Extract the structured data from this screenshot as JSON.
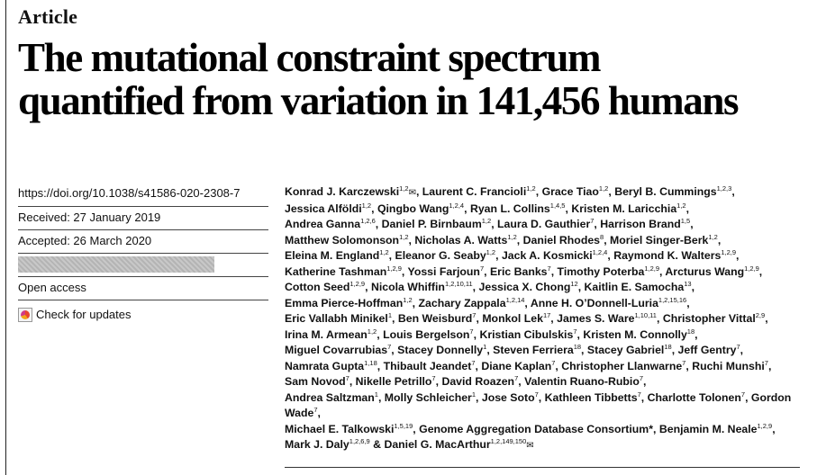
{
  "header": {
    "section": "Article",
    "title_line1": "The mutational constraint spectrum",
    "title_line2": "quantified from variation in 141,456 humans"
  },
  "meta": {
    "doi": "https://doi.org/10.1038/s41586-020-2308-7",
    "received": "Received: 27 January 2019",
    "accepted": "Accepted: 26 March 2020",
    "open_access": "Open access",
    "check_updates": "Check for updates",
    "check_updates_icon": "crossmark-icon"
  },
  "authors": [
    {
      "name": "Konrad J. Karczewski",
      "sup": "1,2",
      "mail": true
    },
    {
      "name": "Laurent C. Francioli",
      "sup": "1,2"
    },
    {
      "name": "Grace Tiao",
      "sup": "1,2"
    },
    {
      "name": "Beryl B. Cummings",
      "sup": "1,2,3"
    },
    {
      "name": "Jessica Alföldi",
      "sup": "1,2"
    },
    {
      "name": "Qingbo Wang",
      "sup": "1,2,4"
    },
    {
      "name": "Ryan L. Collins",
      "sup": "1,4,5"
    },
    {
      "name": "Kristen M. Laricchia",
      "sup": "1,2"
    },
    {
      "name": "Andrea Ganna",
      "sup": "1,2,6"
    },
    {
      "name": "Daniel P. Birnbaum",
      "sup": "1,2"
    },
    {
      "name": "Laura D. Gauthier",
      "sup": "7"
    },
    {
      "name": "Harrison Brand",
      "sup": "1,5"
    },
    {
      "name": "Matthew Solomonson",
      "sup": "1,2"
    },
    {
      "name": "Nicholas A. Watts",
      "sup": "1,2"
    },
    {
      "name": "Daniel Rhodes",
      "sup": "8"
    },
    {
      "name": "Moriel Singer-Berk",
      "sup": "1,2"
    },
    {
      "name": "Eleina M. England",
      "sup": "1,2"
    },
    {
      "name": "Eleanor G. Seaby",
      "sup": "1,2"
    },
    {
      "name": "Jack A. Kosmicki",
      "sup": "1,2,4"
    },
    {
      "name": "Raymond K. Walters",
      "sup": "1,2,9"
    },
    {
      "name": "Katherine Tashman",
      "sup": "1,2,9"
    },
    {
      "name": "Yossi Farjoun",
      "sup": "7"
    },
    {
      "name": "Eric Banks",
      "sup": "7"
    },
    {
      "name": "Timothy Poterba",
      "sup": "1,2,9"
    },
    {
      "name": "Arcturus Wang",
      "sup": "1,2,9"
    },
    {
      "name": "Cotton Seed",
      "sup": "1,2,9"
    },
    {
      "name": "Nicola Whiffin",
      "sup": "1,2,10,11"
    },
    {
      "name": "Jessica X. Chong",
      "sup": "12"
    },
    {
      "name": "Kaitlin E. Samocha",
      "sup": "13"
    },
    {
      "name": "Emma Pierce-Hoffman",
      "sup": "1,2"
    },
    {
      "name": "Zachary Zappala",
      "sup": "1,2,14"
    },
    {
      "name": "Anne H. O’Donnell-Luria",
      "sup": "1,2,15,16"
    },
    {
      "name": "Eric Vallabh Minikel",
      "sup": "1"
    },
    {
      "name": "Ben Weisburd",
      "sup": "7"
    },
    {
      "name": "Monkol Lek",
      "sup": "17"
    },
    {
      "name": "James S. Ware",
      "sup": "1,10,11"
    },
    {
      "name": "Christopher Vittal",
      "sup": "2,9"
    },
    {
      "name": "Irina M. Armean",
      "sup": "1,2"
    },
    {
      "name": "Louis Bergelson",
      "sup": "7"
    },
    {
      "name": "Kristian Cibulskis",
      "sup": "7"
    },
    {
      "name": "Kristen M. Connolly",
      "sup": "18"
    },
    {
      "name": "Miguel Covarrubias",
      "sup": "7"
    },
    {
      "name": "Stacey Donnelly",
      "sup": "1"
    },
    {
      "name": "Steven Ferriera",
      "sup": "18"
    },
    {
      "name": "Stacey Gabriel",
      "sup": "18"
    },
    {
      "name": "Jeff Gentry",
      "sup": "7"
    },
    {
      "name": "Namrata Gupta",
      "sup": "1,18"
    },
    {
      "name": "Thibault Jeandet",
      "sup": "7"
    },
    {
      "name": "Diane Kaplan",
      "sup": "7"
    },
    {
      "name": "Christopher Llanwarne",
      "sup": "7"
    },
    {
      "name": "Ruchi Munshi",
      "sup": "7"
    },
    {
      "name": "Sam Novod",
      "sup": "7"
    },
    {
      "name": "Nikelle Petrillo",
      "sup": "7"
    },
    {
      "name": "David Roazen",
      "sup": "7"
    },
    {
      "name": "Valentin Ruano-Rubio",
      "sup": "7"
    },
    {
      "name": "Andrea Saltzman",
      "sup": "1"
    },
    {
      "name": "Molly Schleicher",
      "sup": "1"
    },
    {
      "name": "Jose Soto",
      "sup": "7"
    },
    {
      "name": "Kathleen Tibbetts",
      "sup": "7"
    },
    {
      "name": "Charlotte Tolonen",
      "sup": "7"
    },
    {
      "name": "Gordon Wade",
      "sup": "7"
    },
    {
      "name": "Michael E. Talkowski",
      "sup": "1,5,19"
    },
    {
      "name": "Genome Aggregation Database Consortium*",
      "sup": ""
    },
    {
      "name": "Benjamin M. Neale",
      "sup": "1,2,9"
    },
    {
      "name": "Mark J. Daly",
      "sup": "1,2,6,9",
      "amp": true
    },
    {
      "name": "Daniel G. MacArthur",
      "sup": "1,2,149,150",
      "mail": true
    }
  ],
  "author_line_breaks": [
    4,
    8,
    12,
    16,
    20,
    25,
    29,
    32,
    37,
    41,
    46,
    51,
    55,
    61,
    64
  ]
}
